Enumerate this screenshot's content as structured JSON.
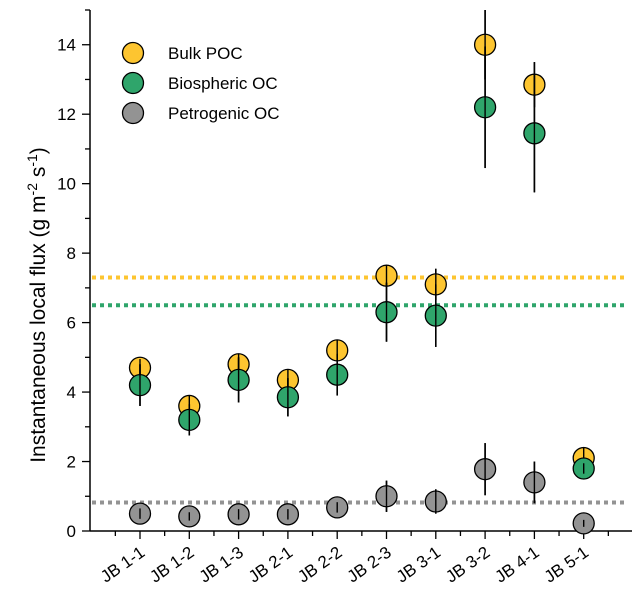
{
  "chart_data": {
    "type": "scatter",
    "title": "",
    "xlabel": "",
    "ylabel": {
      "text": "Instantaneous local flux (g m",
      "sup1": "-2",
      "mid": " s",
      "sup2": "-1",
      "end": ")"
    },
    "ylim": [
      0,
      15
    ],
    "yticks": [
      0,
      2,
      4,
      6,
      8,
      10,
      12,
      14
    ],
    "categories": [
      "JB 1-1",
      "JB 1-2",
      "JB 1-3",
      "JB 2-1",
      "JB 2-2",
      "JB 2-3",
      "JB 3-1",
      "JB 3-2",
      "JB 4-1",
      "JB 5-1"
    ],
    "legend_position": "top-left",
    "series": [
      {
        "name": "Bulk POC",
        "color": "#FDC530",
        "values": [
          4.7,
          3.6,
          4.8,
          4.35,
          5.2,
          7.35,
          7.1,
          14.0,
          12.85,
          2.1
        ],
        "errors": [
          0.25,
          0.3,
          0.3,
          0.3,
          0.3,
          0.3,
          0.45,
          1.0,
          0.65,
          0.3
        ],
        "mean": 7.3
      },
      {
        "name": "Biospheric OC",
        "color": "#2FA56B",
        "values": [
          4.2,
          3.2,
          4.35,
          3.85,
          4.5,
          6.3,
          6.2,
          12.2,
          11.45,
          1.8
        ],
        "errors": [
          0.6,
          0.45,
          0.65,
          0.55,
          0.6,
          0.85,
          0.9,
          1.75,
          1.7,
          0.15
        ],
        "mean": 6.5
      },
      {
        "name": "Petrogenic OC",
        "color": "#939393",
        "values": [
          0.5,
          0.42,
          0.48,
          0.48,
          0.68,
          1.0,
          0.85,
          1.78,
          1.4,
          0.22
        ],
        "errors": [
          0.15,
          0.12,
          0.15,
          0.15,
          0.15,
          0.45,
          0.35,
          0.75,
          0.6,
          0.1
        ],
        "mean": 0.82
      }
    ]
  }
}
